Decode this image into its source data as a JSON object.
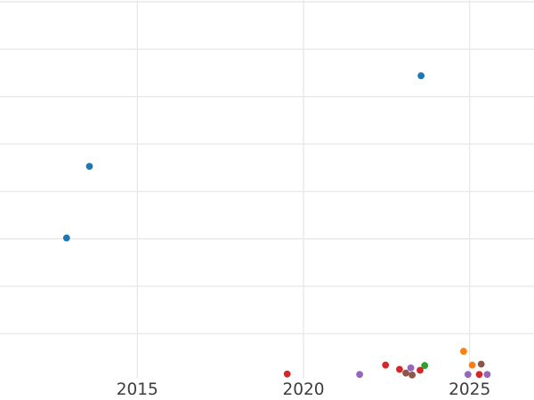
{
  "chart_data": {
    "type": "scatter",
    "title": "",
    "xlabel": "",
    "ylabel": "",
    "legend": "none",
    "grid": true,
    "x_axis": {
      "tick_labels": [
        "2015",
        "2020",
        "2025"
      ],
      "tick_years": [
        2015,
        2020,
        2025
      ],
      "visible_range_years": [
        2010.9,
        2026.9
      ]
    },
    "y_axis": {
      "tick_labels": [],
      "note": "no y-axis labels visible; values given in gridline intervals above the bottom edge",
      "gridline_levels": [
        1,
        2,
        3,
        4,
        5,
        6,
        7,
        8
      ]
    },
    "series": [
      {
        "name": "blue",
        "color": "#1f77b4",
        "points": [
          {
            "year": 2012.87,
            "value": 3.02
          },
          {
            "year": 2013.56,
            "value": 4.53
          },
          {
            "year": 2023.54,
            "value": 6.44
          }
        ]
      },
      {
        "name": "orange",
        "color": "#ff7f0e",
        "points": [
          {
            "year": 2024.82,
            "value": 0.63
          },
          {
            "year": 2025.08,
            "value": 0.34
          }
        ]
      },
      {
        "name": "green",
        "color": "#2ca02c",
        "points": [
          {
            "year": 2023.65,
            "value": 0.33
          }
        ]
      },
      {
        "name": "red",
        "color": "#d62728",
        "points": [
          {
            "year": 2019.51,
            "value": 0.15
          },
          {
            "year": 2022.47,
            "value": 0.34
          },
          {
            "year": 2022.89,
            "value": 0.25
          },
          {
            "year": 2023.51,
            "value": 0.23
          },
          {
            "year": 2025.29,
            "value": 0.14
          }
        ]
      },
      {
        "name": "purple",
        "color": "#9467bd",
        "points": [
          {
            "year": 2021.69,
            "value": 0.14
          },
          {
            "year": 2023.23,
            "value": 0.28
          },
          {
            "year": 2024.95,
            "value": 0.14
          },
          {
            "year": 2025.53,
            "value": 0.14
          }
        ]
      },
      {
        "name": "brown",
        "color": "#8c564b",
        "points": [
          {
            "year": 2023.08,
            "value": 0.17
          },
          {
            "year": 2023.27,
            "value": 0.13
          },
          {
            "year": 2025.35,
            "value": 0.36
          }
        ]
      }
    ]
  },
  "colors": {
    "background": "#ffffff",
    "gridline": "#e9e9e9",
    "tick_label": "#3d3d3d"
  }
}
